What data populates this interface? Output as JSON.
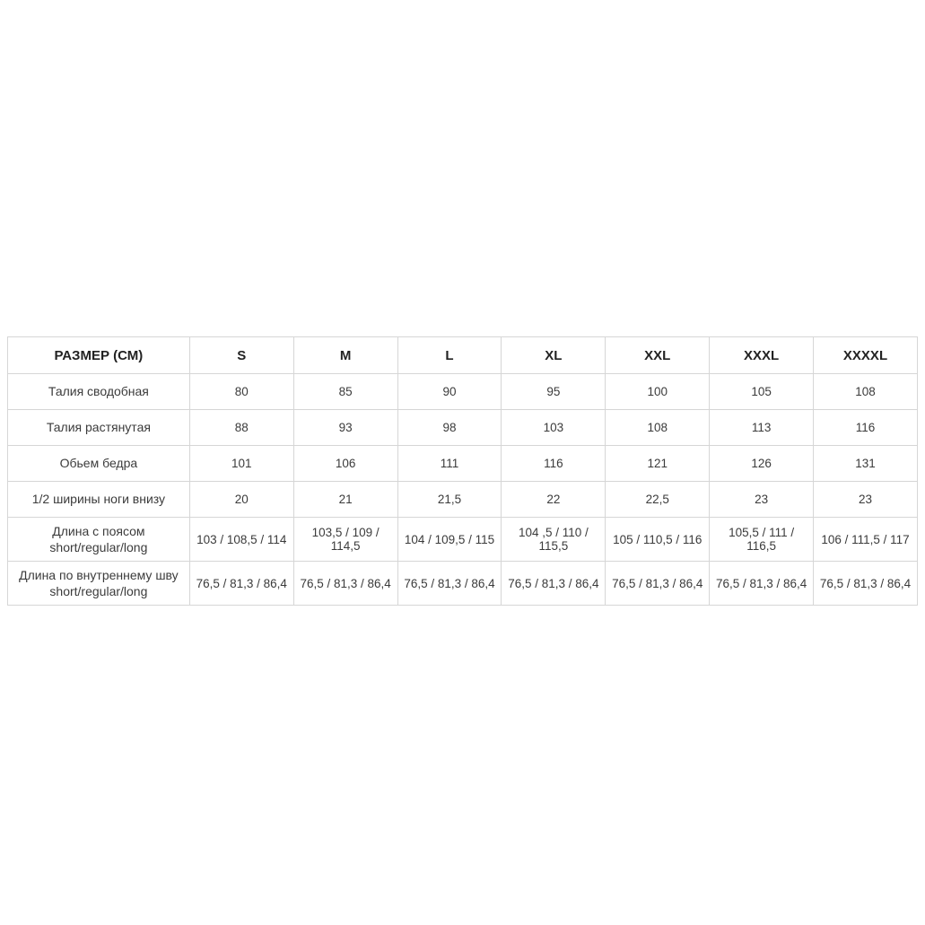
{
  "page": {
    "background": "#ffffff"
  },
  "table": {
    "columns": [
      "РАЗМЕР (СМ)",
      "S",
      "M",
      "L",
      "XL",
      "XXL",
      "XXXL",
      "XXXXL"
    ],
    "rows": [
      {
        "label": "Талия сводобная",
        "tall": false,
        "values": [
          "80",
          "85",
          "90",
          "95",
          "100",
          "105",
          "108"
        ]
      },
      {
        "label": "Талия растянутая",
        "tall": false,
        "values": [
          "88",
          "93",
          "98",
          "103",
          "108",
          "113",
          "116"
        ]
      },
      {
        "label": "Обьем бедра",
        "tall": false,
        "values": [
          "101",
          "106",
          "111",
          "116",
          "121",
          "126",
          "131"
        ]
      },
      {
        "label": "1/2 ширины ноги внизу",
        "tall": false,
        "values": [
          "20",
          "21",
          "21,5",
          "22",
          "22,5",
          "23",
          "23"
        ]
      },
      {
        "label": "Длина с поясом\nshort/regular/long",
        "tall": true,
        "values": [
          "103 / 108,5 / 114",
          "103,5 / 109 / 114,5",
          "104 / 109,5 / 115",
          "104 ,5 / 110 / 115,5",
          "105 / 110,5 / 116",
          "105,5 / 111 / 116,5",
          "106 / 111,5 / 117"
        ]
      },
      {
        "label": "Длина по внутреннему шву\nshort/regular/long",
        "tall": true,
        "values": [
          "76,5 / 81,3 / 86,4",
          "76,5 / 81,3 / 86,4",
          "76,5 / 81,3 / 86,4",
          "76,5 / 81,3 / 86,4",
          "76,5 / 81,3 / 86,4",
          "76,5 / 81,3 / 86,4",
          "76,5 / 81,3 / 86,4"
        ]
      }
    ],
    "colors": {
      "border": "#d6d6d6",
      "header_text": "#222222",
      "body_text": "#3b3b3b",
      "background": "#ffffff"
    }
  }
}
